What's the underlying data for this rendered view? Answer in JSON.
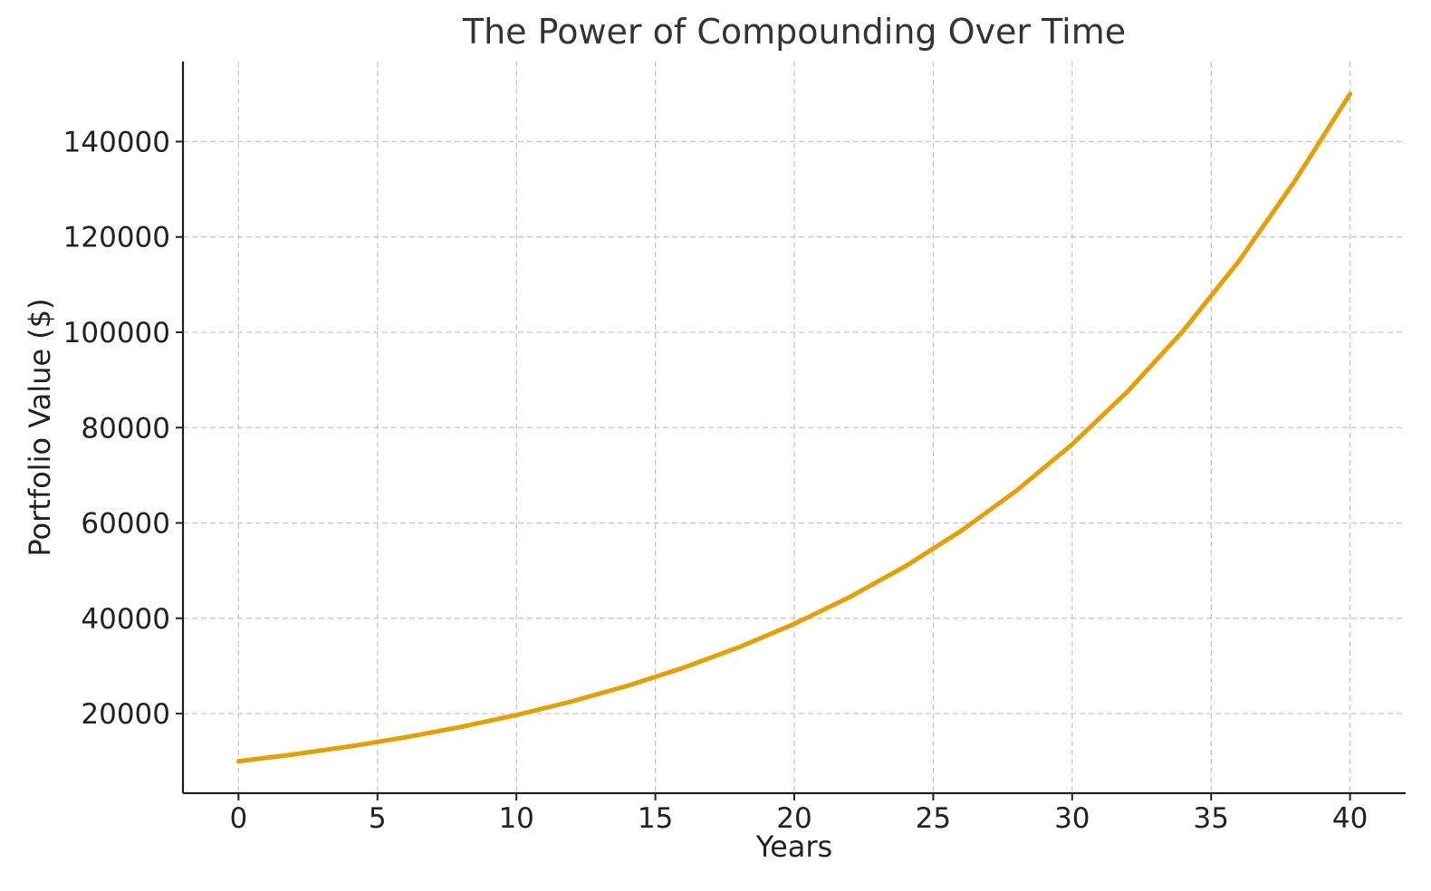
{
  "chart_data": {
    "type": "line",
    "title": "The Power of Compounding Over Time",
    "xlabel": "Years",
    "ylabel": "Portfolio Value ($)",
    "xlim": [
      -2,
      42
    ],
    "ylim": [
      3300,
      156800
    ],
    "grid": true,
    "x_ticks": [
      0,
      5,
      10,
      15,
      20,
      25,
      30,
      35,
      40
    ],
    "y_ticks": [
      20000,
      40000,
      60000,
      80000,
      100000,
      120000,
      140000
    ],
    "x_tick_labels": [
      "0",
      "5",
      "10",
      "15",
      "20",
      "25",
      "30",
      "35",
      "40"
    ],
    "y_tick_labels": [
      "20000",
      "40000",
      "60000",
      "80000",
      "100000",
      "120000",
      "140000"
    ],
    "series": [
      {
        "color": "#E69F00",
        "x": [
          0,
          2,
          4,
          6,
          8,
          10,
          12,
          14,
          16,
          18,
          20,
          22,
          24,
          26,
          28,
          30,
          32,
          34,
          36,
          38,
          40
        ],
        "y": [
          10000,
          11450,
          13110,
          15020,
          17200,
          19700,
          22560,
          25840,
          29600,
          33900,
          38820,
          44460,
          50920,
          58320,
          66800,
          76500,
          87620,
          100350,
          114930,
          131630,
          150000
        ]
      }
    ]
  }
}
